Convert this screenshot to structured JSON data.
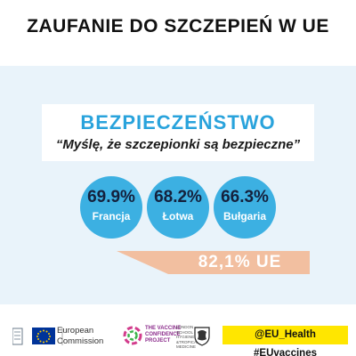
{
  "title": "ZAUFANIE DO SZCZEPIEŃ W UE",
  "card": {
    "heading": "BEZPIECZEŃSTWO",
    "quote": "“Myślę, że szczepionki są bezpieczne”"
  },
  "countries": [
    {
      "value": "69.9%",
      "name": "Francja"
    },
    {
      "value": "68.2%",
      "name": "Łotwa"
    },
    {
      "value": "66.3%",
      "name": "Bułgaria"
    }
  ],
  "eu_average": "82,1% UE",
  "footer": {
    "ec_line1": "European",
    "ec_line2": "Commission",
    "vcp_line1": "THE VACCINE",
    "vcp_line2": "CONFIDENCE",
    "vcp_line3": "PROJECT",
    "hashtags": "@EU_Health  #EUvaccines"
  },
  "colors": {
    "accent_blue": "#29a3dc",
    "circle_blue": "#3cb0e2",
    "eu_bar": "#f2bfa0",
    "panel": "#e9f3fa",
    "tag_yellow": "#ffe600"
  }
}
